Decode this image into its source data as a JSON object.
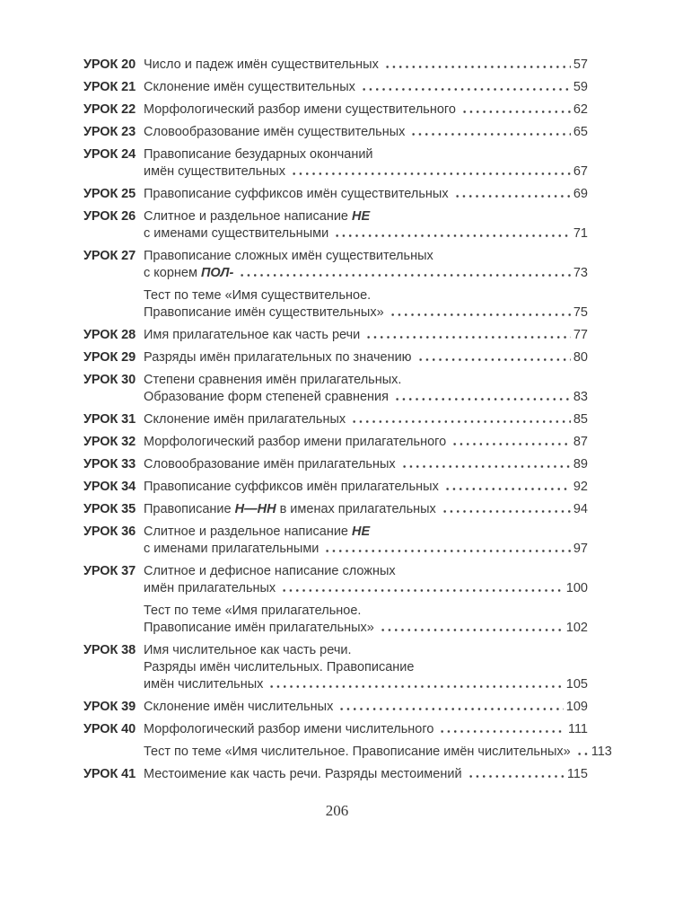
{
  "footer": {
    "page_number": "206"
  },
  "toc": {
    "entries": [
      {
        "label": "УРОК 20",
        "lines": [
          {
            "segments": [
              {
                "t": "Число и падеж имён существительных"
              }
            ],
            "page": "57"
          }
        ]
      },
      {
        "label": "УРОК 21",
        "lines": [
          {
            "segments": [
              {
                "t": "Склонение имён существительных"
              }
            ],
            "page": "59"
          }
        ]
      },
      {
        "label": "УРОК 22",
        "lines": [
          {
            "segments": [
              {
                "t": "Морфологический разбор имени существительного"
              }
            ],
            "page": "62"
          }
        ]
      },
      {
        "label": "УРОК 23",
        "lines": [
          {
            "segments": [
              {
                "t": "Словообразование имён существительных"
              }
            ],
            "page": "65"
          }
        ]
      },
      {
        "label": "УРОК 24",
        "lines": [
          {
            "segments": [
              {
                "t": "Правописание безударных окончаний"
              }
            ]
          },
          {
            "segments": [
              {
                "t": "имён существительных"
              }
            ],
            "page": "67"
          }
        ]
      },
      {
        "label": "УРОК 25",
        "lines": [
          {
            "segments": [
              {
                "t": "Правописание суффиксов имён существительных"
              }
            ],
            "page": "69"
          }
        ]
      },
      {
        "label": "УРОК 26",
        "lines": [
          {
            "segments": [
              {
                "t": "Слитное и раздельное написание "
              },
              {
                "t": "НЕ",
                "bi": true
              }
            ]
          },
          {
            "segments": [
              {
                "t": "с именами существительными"
              }
            ],
            "page": "71"
          }
        ]
      },
      {
        "label": "УРОК 27",
        "lines": [
          {
            "segments": [
              {
                "t": "Правописание сложных имён существительных"
              }
            ]
          },
          {
            "segments": [
              {
                "t": "с корнем "
              },
              {
                "t": "ПОЛ-",
                "bi": true
              },
              {
                "t": " "
              }
            ],
            "page": "73"
          }
        ]
      },
      {
        "label": "",
        "lines": [
          {
            "segments": [
              {
                "t": "Тест по теме «Имя существительное."
              }
            ]
          },
          {
            "segments": [
              {
                "t": "Правописание имён существительных»"
              }
            ],
            "page": "75"
          }
        ]
      },
      {
        "label": "УРОК 28",
        "lines": [
          {
            "segments": [
              {
                "t": "Имя прилагательное как часть речи"
              }
            ],
            "page": "77"
          }
        ]
      },
      {
        "label": "УРОК 29",
        "lines": [
          {
            "segments": [
              {
                "t": "Разряды имён прилагательных по значению"
              }
            ],
            "page": "80"
          }
        ]
      },
      {
        "label": "УРОК 30",
        "lines": [
          {
            "segments": [
              {
                "t": "Степени сравнения имён прилагательных."
              }
            ]
          },
          {
            "segments": [
              {
                "t": "Образование форм степеней сравнения"
              }
            ],
            "page": "83"
          }
        ]
      },
      {
        "label": "УРОК 31",
        "lines": [
          {
            "segments": [
              {
                "t": "Склонение имён прилагательных"
              }
            ],
            "page": "85"
          }
        ]
      },
      {
        "label": "УРОК 32",
        "lines": [
          {
            "segments": [
              {
                "t": "Морфологический разбор имени прилагательного"
              }
            ],
            "page": "87"
          }
        ]
      },
      {
        "label": "УРОК 33",
        "lines": [
          {
            "segments": [
              {
                "t": "Словообразование имён прилагательных"
              }
            ],
            "page": "89"
          }
        ]
      },
      {
        "label": "УРОК 34",
        "lines": [
          {
            "segments": [
              {
                "t": "Правописание суффиксов имён прилагательных"
              }
            ],
            "page": "92"
          }
        ]
      },
      {
        "label": "УРОК 35",
        "lines": [
          {
            "segments": [
              {
                "t": "Правописание "
              },
              {
                "t": "Н—НН",
                "bi": true
              },
              {
                "t": " в именах прилагательных"
              }
            ],
            "page": "94"
          }
        ]
      },
      {
        "label": "УРОК 36",
        "lines": [
          {
            "segments": [
              {
                "t": "Слитное и раздельное написание "
              },
              {
                "t": "НЕ",
                "bi": true
              }
            ]
          },
          {
            "segments": [
              {
                "t": "с именами прилагательными"
              }
            ],
            "page": "97"
          }
        ]
      },
      {
        "label": "УРОК 37",
        "lines": [
          {
            "segments": [
              {
                "t": "Слитное и дефисное написание сложных"
              }
            ]
          },
          {
            "segments": [
              {
                "t": "имён прилагательных"
              }
            ],
            "page": "100"
          }
        ]
      },
      {
        "label": "",
        "lines": [
          {
            "segments": [
              {
                "t": "Тест по теме «Имя прилагательное."
              }
            ]
          },
          {
            "segments": [
              {
                "t": "Правописание имён прилагательных»"
              }
            ],
            "page": "102"
          }
        ]
      },
      {
        "label": "УРОК 38",
        "lines": [
          {
            "segments": [
              {
                "t": "Имя числительное как часть речи."
              }
            ]
          },
          {
            "segments": [
              {
                "t": "Разряды имён числительных. Правописание"
              }
            ]
          },
          {
            "segments": [
              {
                "t": "имён числительных"
              }
            ],
            "page": "105"
          }
        ]
      },
      {
        "label": "УРОК 39",
        "lines": [
          {
            "segments": [
              {
                "t": "Склонение имён числительных"
              }
            ],
            "page": "109"
          }
        ]
      },
      {
        "label": "УРОК 40",
        "lines": [
          {
            "segments": [
              {
                "t": "Морфологический разбор имени числительного"
              }
            ],
            "page": "111"
          }
        ]
      },
      {
        "label": "",
        "lines": [
          {
            "segments": [
              {
                "t": "Тест по теме «Имя числительное. Правописание имён числительных»"
              }
            ],
            "page": "113"
          }
        ]
      },
      {
        "label": "УРОК 41",
        "lines": [
          {
            "segments": [
              {
                "t": "Местоимение как часть речи. Разряды местоимений"
              }
            ],
            "page": "115"
          }
        ]
      }
    ]
  }
}
